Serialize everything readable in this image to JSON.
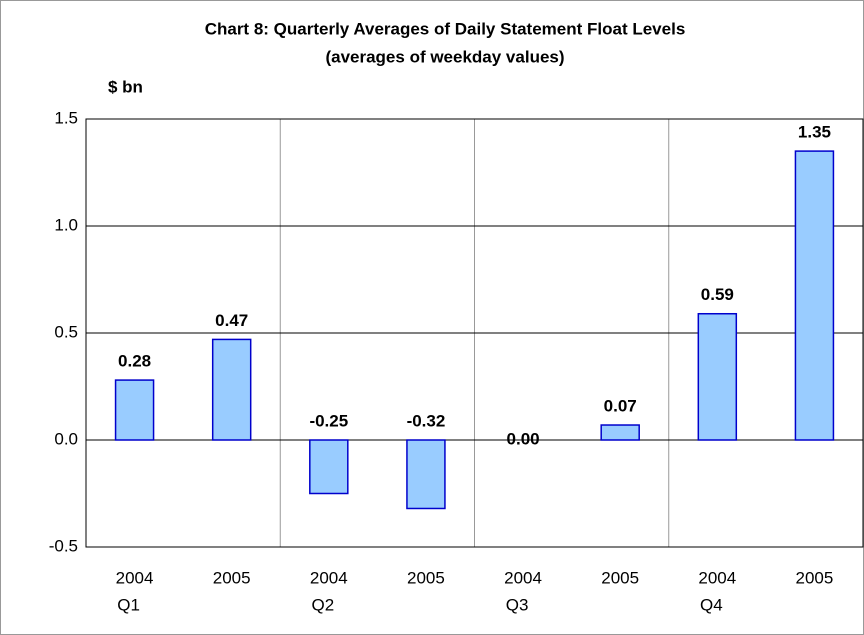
{
  "chart_data": {
    "type": "bar",
    "title": "Chart 8: Quarterly Averages of Daily Statement Float Levels",
    "subtitle": "(averages of weekday values)",
    "y_label": "$ bn",
    "categories": [
      "2004",
      "2005",
      "2004",
      "2005",
      "2004",
      "2005",
      "2004",
      "2005"
    ],
    "groups": [
      "Q1",
      "Q2",
      "Q3",
      "Q4"
    ],
    "values": [
      0.28,
      0.47,
      -0.25,
      -0.32,
      0,
      0.07,
      0.59,
      1.35
    ],
    "value_labels": [
      "0.28",
      "0.47",
      "-0.25",
      "-0.32",
      "0.00",
      "0.07",
      "0.59",
      "1.35"
    ],
    "color": "#99ccff",
    "ylim": [
      -0.5,
      1.5
    ],
    "yticks": [
      -0.5,
      {
        "value": 0,
        "label": "0.0"
      },
      0.5,
      {
        "value": 1,
        "label": "1.0"
      },
      1.5
    ],
    "grid": true
  }
}
